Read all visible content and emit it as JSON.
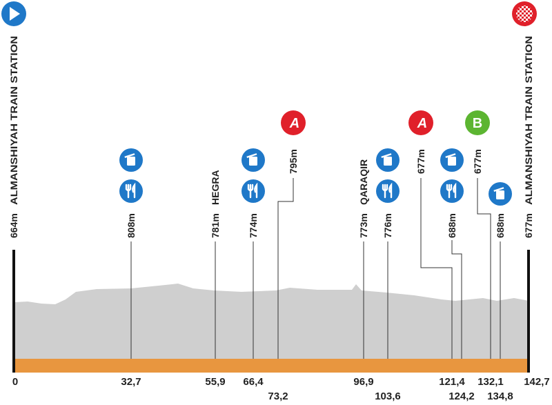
{
  "start": {
    "name": "ALMANSHIYAH TRAIN STATION",
    "altitude": "664m",
    "km": "0"
  },
  "finish": {
    "name": "ALMANSHIYAH TRAIN STATION",
    "altitude": "677m",
    "km": "142,7"
  },
  "points": [
    {
      "km": "32,7",
      "altitude": "808m"
    },
    {
      "km": "55,9",
      "altitude": "781m",
      "name": "HEGRA"
    },
    {
      "km": "66,4",
      "altitude": "774m"
    },
    {
      "km": "73,2",
      "altitude": "795m",
      "sprint": "A"
    },
    {
      "km": "96,9",
      "altitude": "773m",
      "name": "QARAQIR"
    },
    {
      "km": "103,6",
      "altitude": "776m"
    },
    {
      "km": "121,4",
      "altitude": "677m",
      "sprint": "A"
    },
    {
      "km": "124,2",
      "altitude": "688m"
    },
    {
      "km": "132,1",
      "altitude": "677m",
      "sprint": "B"
    },
    {
      "km": "134,8",
      "altitude": "688m"
    }
  ]
}
